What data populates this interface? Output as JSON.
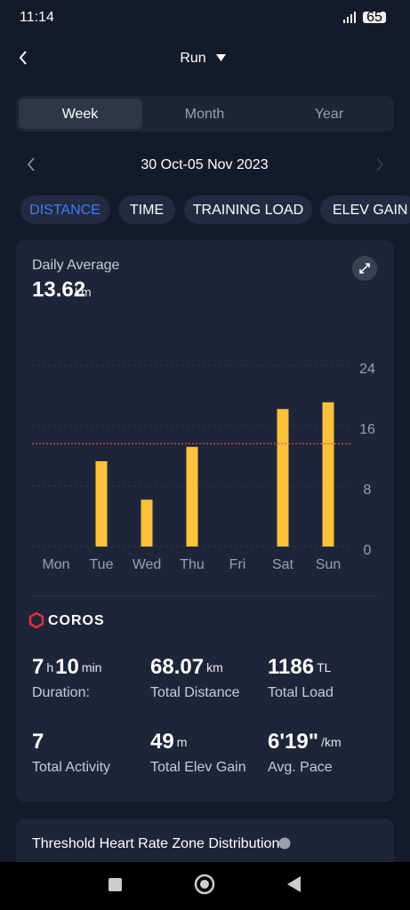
{
  "status_bar": {
    "time": "11:14",
    "battery": "65"
  },
  "header": {
    "title": "Run"
  },
  "period_tabs": [
    "Week",
    "Month",
    "Year"
  ],
  "date_range": "30 Oct-05 Nov 2023",
  "metric_tabs": [
    "DISTANCE",
    "TIME",
    "TRAINING LOAD",
    "ELEV GAIN"
  ],
  "summary": {
    "label": "Daily Average",
    "value": 13.62,
    "unit": "km",
    "line_color": "#e0525c"
  },
  "chart_data": {
    "type": "bar",
    "categories": [
      "Mon",
      "Tue",
      "Wed",
      "Thu",
      "Fri",
      "Sat",
      "Sun"
    ],
    "values": [
      null,
      11.3,
      6.2,
      13.2,
      null,
      18.2,
      19.1
    ],
    "color": "#fbc23c",
    "ylim": [
      0,
      24
    ],
    "yticks": [
      0,
      8,
      16,
      24
    ],
    "grid": true
  },
  "brand": "COROS",
  "stats": [
    {
      "value_parts": [
        "7",
        "h",
        "10",
        "min"
      ],
      "label": "Duration:"
    },
    {
      "value_parts": [
        "68.07",
        "km"
      ],
      "label": "Total Distance"
    },
    {
      "value_parts": [
        "1186",
        "TL"
      ],
      "label": "Total Load"
    },
    {
      "value_parts": [
        "7"
      ],
      "label": "Total Activity"
    },
    {
      "value_parts": [
        "49",
        "m"
      ],
      "label": "Total Elev Gain"
    },
    {
      "value_parts": [
        "6'19\"",
        "/km"
      ],
      "label": "Avg. Pace"
    }
  ],
  "next_section": {
    "title": "Threshold Heart Rate Zone Distribution"
  }
}
